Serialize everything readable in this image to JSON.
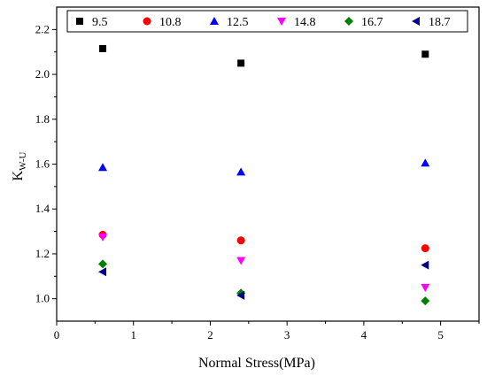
{
  "chart_data": {
    "type": "scatter",
    "title": "",
    "xlabel": "Normal Stress(MPa)",
    "ylabel_main": "K",
    "ylabel_sub": "W-U",
    "xlim": [
      0,
      5.5
    ],
    "ylim": [
      0.9,
      2.3
    ],
    "xticks": [
      "0",
      "1",
      "2",
      "3",
      "4",
      "5"
    ],
    "yticks": [
      "1.0",
      "1.2",
      "1.4",
      "1.6",
      "1.8",
      "2.0",
      "2.2"
    ],
    "grid": false,
    "legend_position": "top",
    "series": [
      {
        "name": "9.5",
        "marker": "square",
        "color": "#000000",
        "points": [
          [
            0.6,
            2.115
          ],
          [
            2.4,
            2.05
          ],
          [
            4.8,
            2.09
          ]
        ]
      },
      {
        "name": "10.8",
        "marker": "circle",
        "color": "#ff0000",
        "points": [
          [
            0.6,
            1.285
          ],
          [
            2.4,
            1.26
          ],
          [
            4.8,
            1.225
          ]
        ]
      },
      {
        "name": "12.5",
        "marker": "triangle-up",
        "color": "#0000ff",
        "points": [
          [
            0.6,
            1.585
          ],
          [
            2.4,
            1.565
          ],
          [
            4.8,
            1.605
          ]
        ]
      },
      {
        "name": "14.8",
        "marker": "triangle-down",
        "color": "#ff00ff",
        "points": [
          [
            0.6,
            1.275
          ],
          [
            2.4,
            1.17
          ],
          [
            4.8,
            1.05
          ]
        ]
      },
      {
        "name": "16.7",
        "marker": "diamond",
        "color": "#008000",
        "points": [
          [
            0.6,
            1.155
          ],
          [
            2.4,
            1.025
          ],
          [
            4.8,
            0.99
          ]
        ]
      },
      {
        "name": "18.7",
        "marker": "triangle-left",
        "color": "#00008b",
        "points": [
          [
            0.6,
            1.12
          ],
          [
            2.4,
            1.015
          ],
          [
            4.8,
            1.15
          ]
        ]
      }
    ]
  }
}
